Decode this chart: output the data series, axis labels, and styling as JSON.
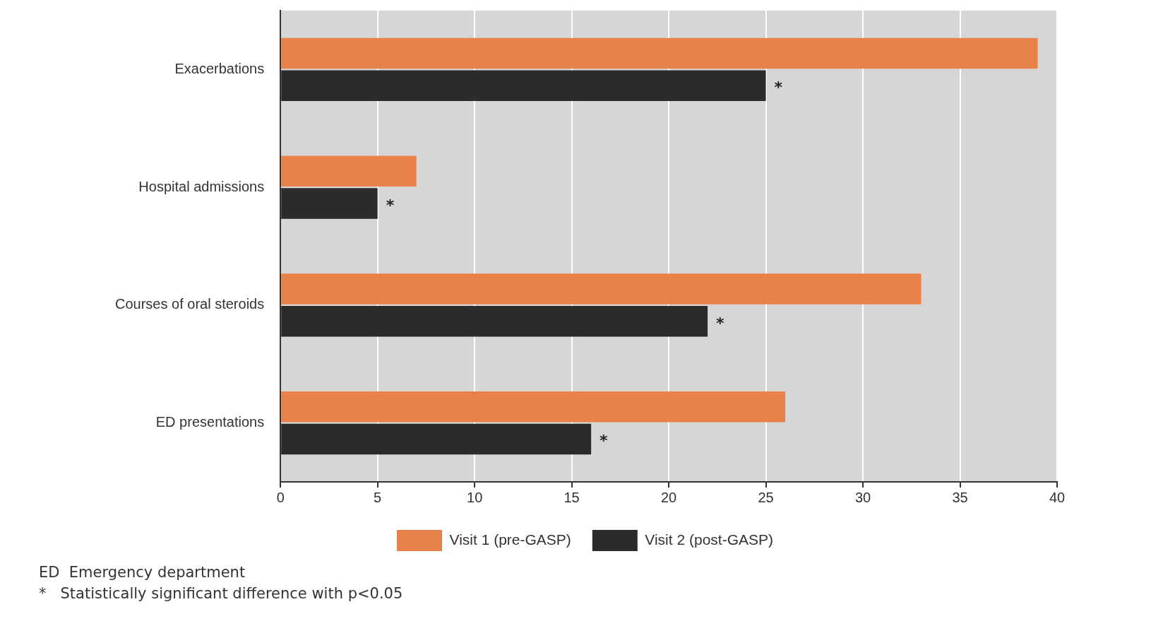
{
  "chart_data": {
    "type": "bar",
    "orientation": "horizontal",
    "categories": [
      "Exacerbations",
      "Hospital admissions",
      "Courses of oral steroids",
      "ED presentations"
    ],
    "series": [
      {
        "name": "Visit 1 (pre-GASP)",
        "color": "#e8824a",
        "values": [
          39,
          7,
          33,
          26
        ]
      },
      {
        "name": "Visit 2 (post-GASP)",
        "color": "#2b2b2b",
        "values": [
          25,
          5,
          22,
          16
        ]
      }
    ],
    "xlim": [
      0,
      40
    ],
    "xticks": [
      0,
      5,
      10,
      15,
      20,
      25,
      30,
      35,
      40
    ],
    "grid": "x",
    "legend": "bottom",
    "annotations": [
      {
        "text": "*",
        "x": 25,
        "y": "Exacerbations"
      },
      {
        "text": "*",
        "x": 5,
        "y": "Hospital admissions"
      },
      {
        "text": "*",
        "x": 22,
        "y": "Courses of oral steroids"
      },
      {
        "text": "*",
        "x": 16,
        "y": "ED presentations"
      },
      "ED  Emergency department",
      "*   Statistically significant difference with p<0.05"
    ]
  }
}
